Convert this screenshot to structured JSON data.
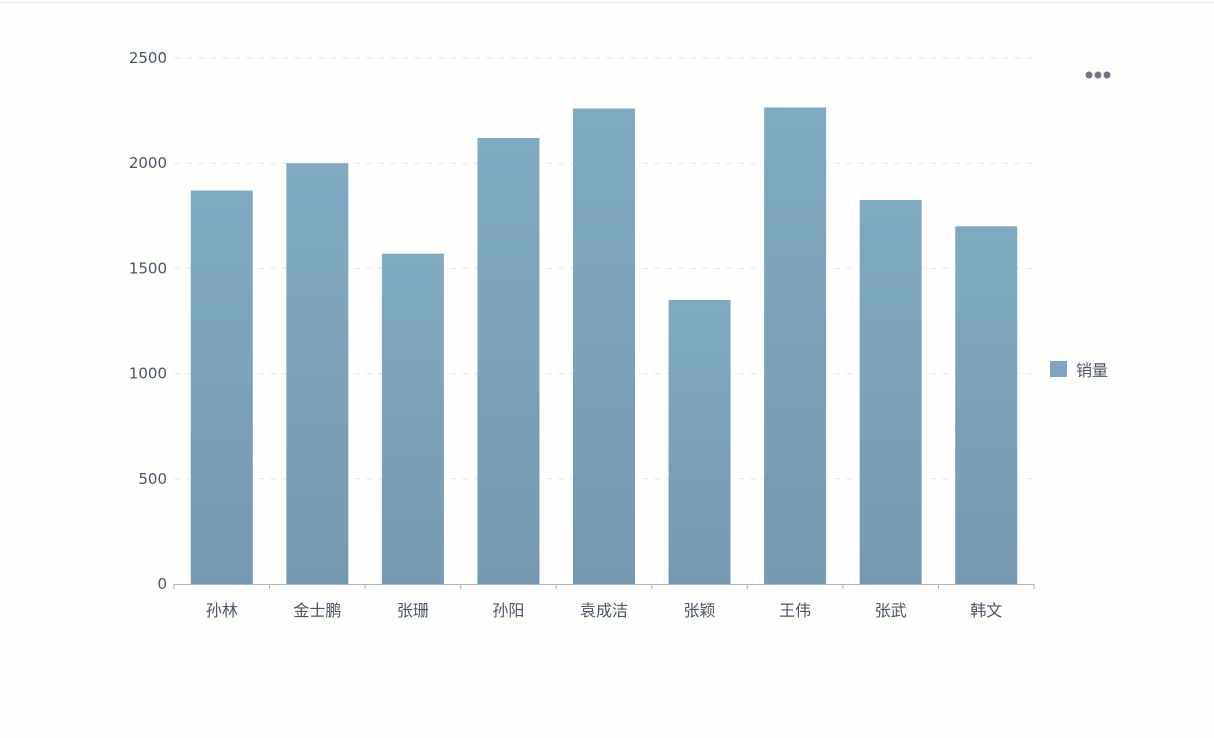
{
  "chart_data": {
    "type": "bar",
    "title": "",
    "xlabel": "",
    "ylabel": "",
    "categories": [
      "孙林",
      "金士鹏",
      "张珊",
      "孙阳",
      "袁成洁",
      "张颖",
      "王伟",
      "张武",
      "韩文"
    ],
    "series": [
      {
        "name": "销量",
        "values": [
          1870,
          2000,
          1570,
          2120,
          2260,
          1350,
          2265,
          1825,
          1700
        ]
      }
    ],
    "ylim": [
      0,
      2500
    ],
    "yticks": [
      0,
      500,
      1000,
      1500,
      2000,
      2500
    ],
    "grid": true,
    "legend_position": "right",
    "colors": {
      "bar_top": "#80aac3",
      "bar_bottom": "#7599b2",
      "axis": "#aab4c0",
      "grid": "#e6e6e6",
      "text": "#4a5666"
    }
  },
  "toolbar": {
    "icon": "more-dots-icon"
  }
}
